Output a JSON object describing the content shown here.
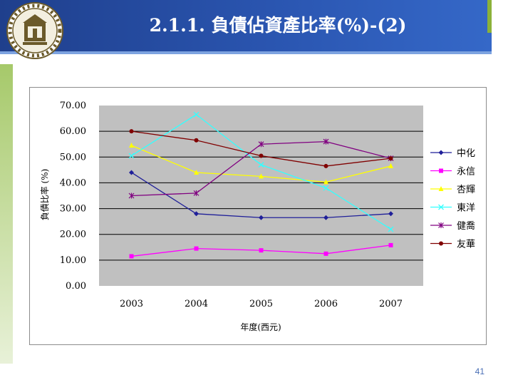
{
  "slide": {
    "title": "2.1.1. 負債佔資產比率(%)-(2)",
    "page_number": "41"
  },
  "colors": {
    "header_blue": "#2a55b0",
    "accent_green": "#8bb23a",
    "plot_background": "#c0c0c0"
  },
  "chart_data": {
    "type": "line",
    "title": "",
    "xlabel": "年度(西元)",
    "ylabel": "負債比率 (%)",
    "categories": [
      "2003",
      "2004",
      "2005",
      "2006",
      "2007"
    ],
    "ylim": [
      0,
      70
    ],
    "yticks": [
      "0.00",
      "10.00",
      "20.00",
      "30.00",
      "40.00",
      "50.00",
      "60.00",
      "70.00"
    ],
    "grid": true,
    "legend_position": "right",
    "series": [
      {
        "name": "中化",
        "values": [
          44.0,
          28.0,
          26.5,
          26.5,
          28.0
        ],
        "color": "#1f1f99",
        "marker": "diamond"
      },
      {
        "name": "永信",
        "values": [
          11.5,
          14.5,
          13.8,
          12.5,
          15.8
        ],
        "color": "#ff00ff",
        "marker": "square"
      },
      {
        "name": "杏輝",
        "values": [
          54.5,
          44.0,
          42.5,
          40.3,
          46.5
        ],
        "color": "#ffff00",
        "marker": "triangle"
      },
      {
        "name": "東洋",
        "values": [
          50.5,
          66.5,
          47.0,
          38.0,
          22.0
        ],
        "color": "#33ffff",
        "marker": "x"
      },
      {
        "name": "健喬",
        "values": [
          35.0,
          36.0,
          55.0,
          56.0,
          49.5
        ],
        "color": "#800080",
        "marker": "star"
      },
      {
        "name": "友華",
        "values": [
          60.0,
          56.5,
          50.5,
          46.5,
          49.5
        ],
        "color": "#800000",
        "marker": "circle"
      }
    ]
  }
}
